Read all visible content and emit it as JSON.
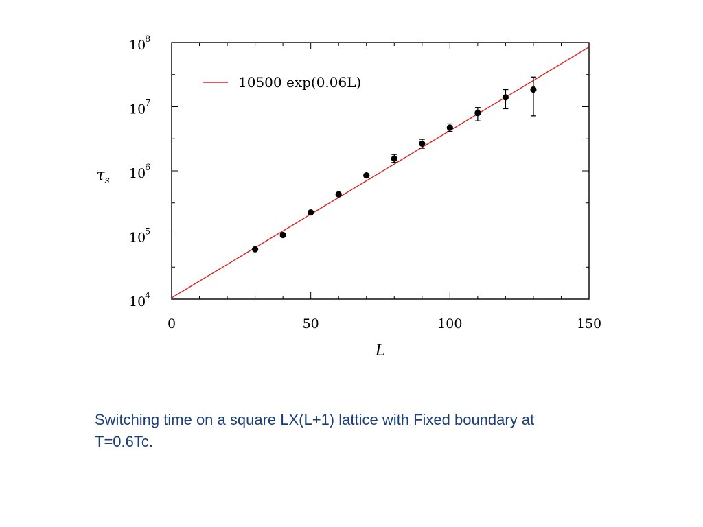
{
  "chart_data": {
    "type": "scatter",
    "xlabel": "L",
    "ylabel": "τs",
    "xlim": [
      0,
      150
    ],
    "ylim": [
      10000,
      100000000
    ],
    "yscale": "log",
    "x_ticks": [
      0,
      50,
      100,
      150
    ],
    "y_ticks": [
      {
        "value": 10000,
        "base": "10",
        "exp": "4"
      },
      {
        "value": 100000,
        "base": "10",
        "exp": "5"
      },
      {
        "value": 1000000,
        "base": "10",
        "exp": "6"
      },
      {
        "value": 10000000,
        "base": "10",
        "exp": "7"
      },
      {
        "value": 100000000,
        "base": "10",
        "exp": "8"
      }
    ],
    "legend": {
      "position": "top-left",
      "entries": [
        {
          "label": "10500 exp(0.06L)",
          "color": "#e02020"
        }
      ]
    },
    "fit": {
      "a": 10500,
      "b": 0.06,
      "color": "#e02020"
    },
    "points": [
      {
        "x": 30,
        "y": 60000,
        "ylo": 58000,
        "yhi": 62000
      },
      {
        "x": 40,
        "y": 100000,
        "ylo": 96000,
        "yhi": 104000
      },
      {
        "x": 50,
        "y": 225000,
        "ylo": 215000,
        "yhi": 235000
      },
      {
        "x": 60,
        "y": 430000,
        "ylo": 410000,
        "yhi": 450000
      },
      {
        "x": 70,
        "y": 850000,
        "ylo": 810000,
        "yhi": 890000
      },
      {
        "x": 80,
        "y": 1550000,
        "ylo": 1350000,
        "yhi": 1800000
      },
      {
        "x": 90,
        "y": 2650000,
        "ylo": 2250000,
        "yhi": 3100000
      },
      {
        "x": 100,
        "y": 4700000,
        "ylo": 4100000,
        "yhi": 5400000
      },
      {
        "x": 110,
        "y": 8000000,
        "ylo": 6000000,
        "yhi": 9700000
      },
      {
        "x": 120,
        "y": 14000000,
        "ylo": 9300000,
        "yhi": 18500000
      },
      {
        "x": 130,
        "y": 18500000,
        "ylo": 7200000,
        "yhi": 29000000
      }
    ],
    "point_color": "#000000"
  },
  "caption": "Switching time on a square LX(L+1) lattice with Fixed boundary at T=0.6Tc."
}
